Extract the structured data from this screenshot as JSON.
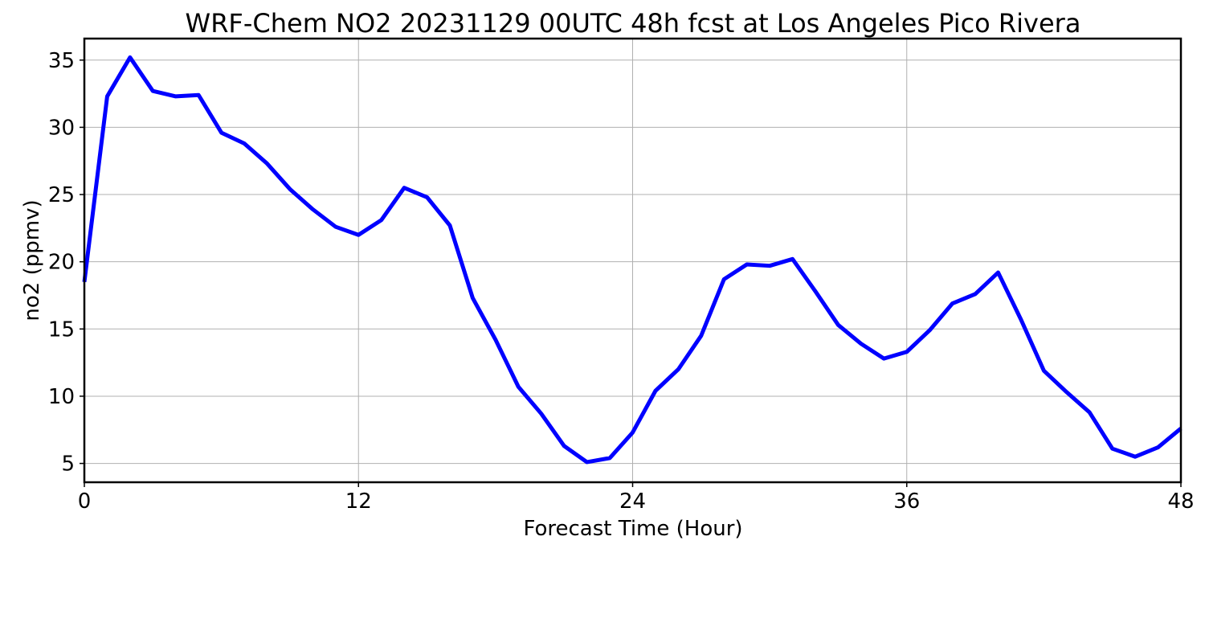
{
  "chart_data": {
    "type": "line",
    "title": "WRF-Chem NO2  20231129 00UTC 48h fcst at Los Angeles Pico Rivera",
    "xlabel": "Forecast Time (Hour)",
    "ylabel": "no2  (ppmv)",
    "xlim": [
      0,
      48
    ],
    "ylim": [
      3.6,
      36.6
    ],
    "xticks": [
      0,
      12,
      24,
      36,
      48
    ],
    "yticks": [
      5,
      10,
      15,
      20,
      25,
      30,
      35
    ],
    "grid": true,
    "colors": {
      "line": "#0000ff",
      "grid": "#b0b0b0",
      "frame": "#000000"
    },
    "series": [
      {
        "x": [
          0,
          1,
          2,
          3,
          4,
          5,
          6,
          7,
          8,
          9,
          10,
          11,
          12,
          13,
          14,
          15,
          16,
          17,
          18,
          19,
          20,
          21,
          22,
          23,
          24,
          25,
          26,
          27,
          28,
          29,
          30,
          31,
          32,
          33,
          34,
          35,
          36,
          37,
          38,
          39,
          40,
          41,
          42,
          43,
          44,
          45,
          46,
          47,
          48
        ],
        "values": [
          18.5,
          32.3,
          35.2,
          32.7,
          32.3,
          32.4,
          29.6,
          28.8,
          27.3,
          25.4,
          23.9,
          22.6,
          22.0,
          23.1,
          25.5,
          24.8,
          22.7,
          17.3,
          14.2,
          10.7,
          8.7,
          6.3,
          5.1,
          5.4,
          7.3,
          10.4,
          12.0,
          14.5,
          18.7,
          19.8,
          19.7,
          20.2,
          17.8,
          15.3,
          13.9,
          12.8,
          13.3,
          14.9,
          16.9,
          17.6,
          19.2,
          15.7,
          11.9,
          10.3,
          8.8,
          6.1,
          5.5,
          6.2,
          7.6
        ]
      }
    ]
  }
}
